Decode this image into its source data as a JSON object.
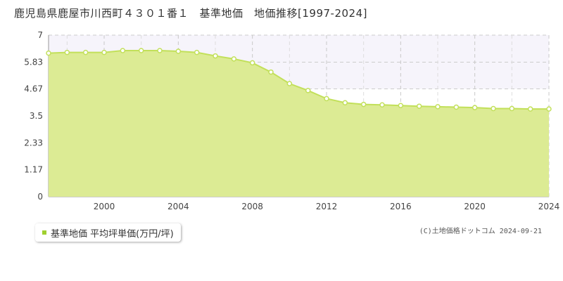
{
  "title": "鹿児島県鹿屋市川西町４３０１番１　基準地価　地価推移[1997-2024]",
  "legend_label": "基準地価 平均坪単価(万円/坪)",
  "copyright": "(C)土地価格ドットコム 2024-09-21",
  "colors": {
    "fill": "#dceb94",
    "line": "#c2e05a",
    "marker_fill": "#ffffff",
    "band": "#f6f4fb"
  },
  "chart_data": {
    "type": "area",
    "x": [
      1997,
      1998,
      1999,
      2000,
      2001,
      2002,
      2003,
      2004,
      2005,
      2006,
      2007,
      2008,
      2009,
      2010,
      2011,
      2012,
      2013,
      2014,
      2015,
      2016,
      2017,
      2018,
      2019,
      2020,
      2021,
      2022,
      2023,
      2024
    ],
    "series": [
      {
        "values": [
          6.22,
          6.25,
          6.25,
          6.25,
          6.33,
          6.33,
          6.33,
          6.3,
          6.25,
          6.1,
          5.97,
          5.8,
          5.4,
          4.9,
          4.6,
          4.25,
          4.07,
          4.0,
          3.98,
          3.95,
          3.92,
          3.9,
          3.88,
          3.86,
          3.82,
          3.82,
          3.8,
          3.8
        ]
      }
    ],
    "y_ticks": [
      "0",
      "1.17",
      "2.33",
      "3.5",
      "4.67",
      "5.83",
      "7"
    ],
    "x_ticks": [
      "2000",
      "2004",
      "2008",
      "2012",
      "2016",
      "2020",
      "2024"
    ],
    "xlim": [
      1997,
      2024
    ],
    "ylim": [
      0,
      7
    ],
    "grid": true,
    "legend_position": "bottom-left"
  }
}
